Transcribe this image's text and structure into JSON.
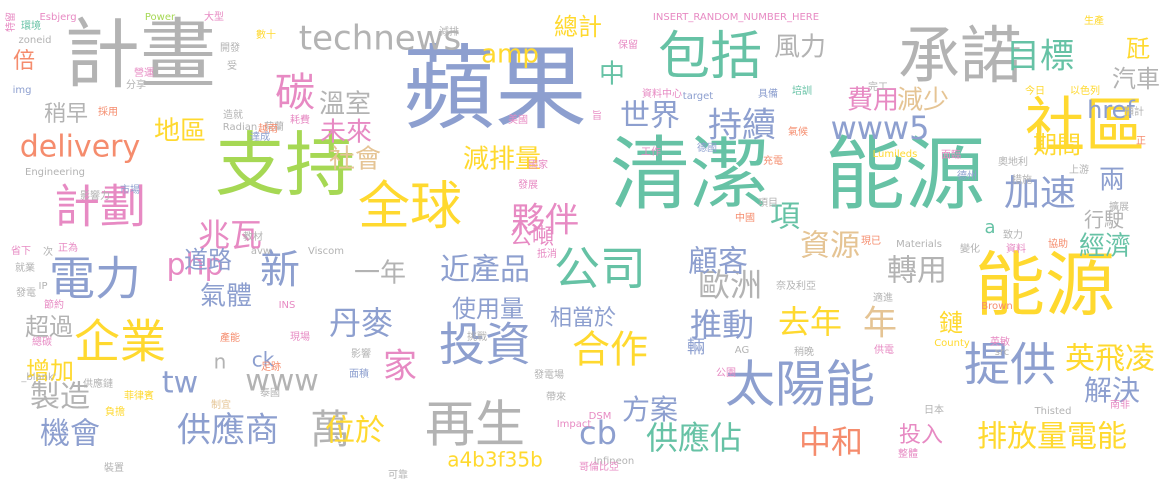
{
  "palette": {
    "blue": "#8d9fcf",
    "green": "#66c2a5",
    "orange": "#f58c6d",
    "pink": "#e78ac3",
    "lime": "#a6d854",
    "yellow": "#ffd92f",
    "tan": "#e5c494",
    "gray": "#b3b3b3"
  },
  "words": [
    {
      "text": "蘋果",
      "color": "blue"
    },
    {
      "text": "清潔",
      "color": "green"
    },
    {
      "text": "能源",
      "color": "green"
    },
    {
      "text": "計畫",
      "color": "gray"
    },
    {
      "text": "支持",
      "color": "lime"
    },
    {
      "text": "能源",
      "color": "yellow"
    },
    {
      "text": "承諾",
      "color": "gray"
    },
    {
      "text": "社區",
      "color": "yellow"
    },
    {
      "text": "包括",
      "color": "green"
    },
    {
      "text": "全球",
      "color": "yellow"
    },
    {
      "text": "再生",
      "color": "gray"
    },
    {
      "text": "太陽能",
      "color": "blue"
    },
    {
      "text": "公司",
      "color": "green"
    },
    {
      "text": "企業",
      "color": "yellow"
    },
    {
      "text": "投資",
      "color": "blue"
    },
    {
      "text": "提供",
      "color": "blue"
    },
    {
      "text": "計劃",
      "color": "pink"
    },
    {
      "text": "電力",
      "color": "blue"
    },
    {
      "text": "碳",
      "color": "pink"
    },
    {
      "text": "technews",
      "color": "gray"
    },
    {
      "text": "目標",
      "color": "green"
    },
    {
      "text": "持續",
      "color": "blue"
    },
    {
      "text": "供應商",
      "color": "blue"
    },
    {
      "text": "萬",
      "color": "gray"
    },
    {
      "text": "合作",
      "color": "yellow"
    },
    {
      "text": "新",
      "color": "blue"
    },
    {
      "text": "夥伴",
      "color": "pink"
    },
    {
      "text": "加速",
      "color": "blue"
    },
    {
      "text": "年",
      "color": "tan"
    },
    {
      "text": "家",
      "color": "pink"
    },
    {
      "text": "機會",
      "color": "blue"
    },
    {
      "text": "cb",
      "color": "blue"
    },
    {
      "text": "供應佔",
      "color": "green"
    },
    {
      "text": "中和",
      "color": "orange"
    },
    {
      "text": "排放量電能",
      "color": "yellow"
    },
    {
      "text": "delivery",
      "color": "orange"
    },
    {
      "text": "兆瓦",
      "color": "pink"
    },
    {
      "text": "位於",
      "color": "yellow"
    },
    {
      "text": "www5",
      "color": "blue"
    },
    {
      "text": "丹麥",
      "color": "blue"
    },
    {
      "text": "推動",
      "color": "blue"
    },
    {
      "text": "去年",
      "color": "yellow"
    },
    {
      "text": "歐洲",
      "color": "gray"
    },
    {
      "text": "www",
      "color": "gray"
    },
    {
      "text": "tw",
      "color": "blue"
    },
    {
      "text": "製造",
      "color": "gray"
    },
    {
      "text": "英飛凌",
      "color": "yellow"
    },
    {
      "text": "解決",
      "color": "blue"
    },
    {
      "text": "方案",
      "color": "blue"
    },
    {
      "text": "資源",
      "color": "tan"
    },
    {
      "text": "轉用",
      "color": "gray"
    },
    {
      "text": "近產品",
      "color": "blue"
    },
    {
      "text": "顧客",
      "color": "blue"
    },
    {
      "text": "項",
      "color": "green"
    },
    {
      "text": "一年",
      "color": "gray"
    },
    {
      "text": "php",
      "color": "pink"
    },
    {
      "text": "amp",
      "color": "yellow"
    },
    {
      "text": "中",
      "color": "green"
    },
    {
      "text": "風力",
      "color": "gray"
    },
    {
      "text": "世界",
      "color": "blue"
    },
    {
      "text": "地區",
      "color": "yellow"
    },
    {
      "text": "社會",
      "color": "tan"
    },
    {
      "text": "減排量",
      "color": "yellow"
    },
    {
      "text": "未來",
      "color": "pink"
    },
    {
      "text": "溫室",
      "color": "gray"
    },
    {
      "text": "費用",
      "color": "pink"
    },
    {
      "text": "減少",
      "color": "tan"
    },
    {
      "text": "期間",
      "color": "yellow"
    },
    {
      "text": "經濟",
      "color": "green"
    },
    {
      "text": "兩",
      "color": "blue"
    },
    {
      "text": "汽車",
      "color": "gray"
    },
    {
      "text": "瓩",
      "color": "yellow"
    },
    {
      "text": "href",
      "color": "blue"
    },
    {
      "text": "總計",
      "color": "yellow"
    },
    {
      "text": "道路",
      "color": "blue"
    },
    {
      "text": "公噸",
      "color": "pink"
    },
    {
      "text": "氣體",
      "color": "blue"
    },
    {
      "text": "超過",
      "color": "gray"
    },
    {
      "text": "使用量",
      "color": "blue"
    },
    {
      "text": "相當於",
      "color": "blue"
    },
    {
      "text": "鏈",
      "color": "yellow"
    },
    {
      "text": "增加",
      "color": "yellow"
    },
    {
      "text": "投入",
      "color": "pink"
    },
    {
      "text": "a4b3f35b",
      "color": "yellow"
    },
    {
      "text": "倍",
      "color": "orange"
    },
    {
      "text": "稍早",
      "color": "gray"
    },
    {
      "text": "ck",
      "color": "blue"
    },
    {
      "text": "n",
      "color": "gray"
    },
    {
      "text": "輛",
      "color": "blue"
    },
    {
      "text": "行駛",
      "color": "gray"
    },
    {
      "text": "a",
      "color": "green"
    },
    {
      "text": "Esbjerg",
      "color": "pink"
    },
    {
      "text": "Power",
      "color": "lime"
    },
    {
      "text": "INSERT_RANDOM_NUMBER_HERE",
      "color": "pink"
    },
    {
      "text": "特留",
      "color": "pink"
    },
    {
      "text": "環境",
      "color": "green"
    },
    {
      "text": "大型",
      "color": "pink"
    },
    {
      "text": "zoneid",
      "color": "gray"
    },
    {
      "text": "開發",
      "color": "gray"
    },
    {
      "text": "數十",
      "color": "yellow"
    },
    {
      "text": "減排",
      "color": "gray"
    },
    {
      "text": "保留",
      "color": "pink"
    },
    {
      "text": "生產",
      "color": "yellow"
    },
    {
      "text": "營運",
      "color": "pink"
    },
    {
      "text": "受",
      "color": "gray"
    },
    {
      "text": "分享",
      "color": "gray"
    },
    {
      "text": "img",
      "color": "blue"
    },
    {
      "text": "資料中心",
      "color": "pink"
    },
    {
      "text": "target",
      "color": "blue"
    },
    {
      "text": "具備",
      "color": "blue"
    },
    {
      "text": "培訓",
      "color": "green"
    },
    {
      "text": "完工",
      "color": "gray"
    },
    {
      "text": "今日",
      "color": "yellow"
    },
    {
      "text": "以色列",
      "color": "yellow"
    },
    {
      "text": "採用",
      "color": "orange"
    },
    {
      "text": "造就",
      "color": "gray"
    },
    {
      "text": "荷蘭",
      "color": "gray"
    },
    {
      "text": "耗費",
      "color": "pink"
    },
    {
      "text": "美國",
      "color": "pink"
    },
    {
      "text": "旨",
      "color": "pink"
    },
    {
      "text": "氣候",
      "color": "orange"
    },
    {
      "text": "預計",
      "color": "gray"
    },
    {
      "text": "Radian",
      "color": "gray"
    },
    {
      "text": "越南",
      "color": "orange"
    },
    {
      "text": "達成",
      "color": "blue"
    },
    {
      "text": "Lumileds",
      "color": "yellow"
    },
    {
      "text": "面臨",
      "color": "pink"
    },
    {
      "text": "正",
      "color": "orange"
    },
    {
      "text": "Engineering",
      "color": "gray"
    },
    {
      "text": "影響力",
      "color": "gray"
    },
    {
      "text": "國家",
      "color": "pink"
    },
    {
      "text": "工作",
      "color": "pink"
    },
    {
      "text": "德國",
      "color": "blue"
    },
    {
      "text": "充電",
      "color": "orange"
    },
    {
      "text": "奧地利",
      "color": "gray"
    },
    {
      "text": "上游",
      "color": "gray"
    },
    {
      "text": "德州",
      "color": "blue"
    },
    {
      "text": "措施",
      "color": "gray"
    },
    {
      "text": "市場",
      "color": "blue"
    },
    {
      "text": "發展",
      "color": "pink"
    },
    {
      "text": "項目",
      "color": "gray"
    },
    {
      "text": "擴展",
      "color": "gray"
    },
    {
      "text": "省下",
      "color": "pink"
    },
    {
      "text": "次",
      "color": "gray"
    },
    {
      "text": "教材",
      "color": "gray"
    },
    {
      "text": "avw",
      "color": "gray"
    },
    {
      "text": "中國",
      "color": "orange"
    },
    {
      "text": "致力",
      "color": "gray"
    },
    {
      "text": "正為",
      "color": "pink"
    },
    {
      "text": "Viscom",
      "color": "gray"
    },
    {
      "text": "現已",
      "color": "orange"
    },
    {
      "text": "Materials",
      "color": "gray"
    },
    {
      "text": "變化",
      "color": "gray"
    },
    {
      "text": "資料",
      "color": "pink"
    },
    {
      "text": "協助",
      "color": "orange"
    },
    {
      "text": "就業",
      "color": "gray"
    },
    {
      "text": "抵消",
      "color": "pink"
    },
    {
      "text": "發電",
      "color": "gray"
    },
    {
      "text": "節約",
      "color": "pink"
    },
    {
      "text": "IP",
      "color": "gray"
    },
    {
      "text": "奈及利亞",
      "color": "gray"
    },
    {
      "text": "Brown",
      "color": "orange"
    },
    {
      "text": "INS",
      "color": "pink"
    },
    {
      "text": "現場",
      "color": "pink"
    },
    {
      "text": "挑戰",
      "color": "gray"
    },
    {
      "text": "適進",
      "color": "gray"
    },
    {
      "text": "總碳",
      "color": "pink"
    },
    {
      "text": "英敏",
      "color": "pink"
    },
    {
      "text": "County",
      "color": "yellow"
    },
    {
      "text": "產能",
      "color": "orange"
    },
    {
      "text": "足跡",
      "color": "orange"
    },
    {
      "text": "影響",
      "color": "gray"
    },
    {
      "text": "AG",
      "color": "gray"
    },
    {
      "text": "稍晚",
      "color": "gray"
    },
    {
      "text": "供電",
      "color": "pink"
    },
    {
      "text": "src",
      "color": "gray"
    },
    {
      "text": "_blank'",
      "color": "gray"
    },
    {
      "text": "供應鏈",
      "color": "gray"
    },
    {
      "text": "面積",
      "color": "blue"
    },
    {
      "text": "發電場",
      "color": "gray"
    },
    {
      "text": "帶來",
      "color": "gray"
    },
    {
      "text": "公園",
      "color": "pink"
    },
    {
      "text": "泰國",
      "color": "gray"
    },
    {
      "text": "菲律賓",
      "color": "yellow"
    },
    {
      "text": "負擔",
      "color": "yellow"
    },
    {
      "text": "制宜",
      "color": "tan"
    },
    {
      "text": "DSM",
      "color": "pink"
    },
    {
      "text": "Impact",
      "color": "pink"
    },
    {
      "text": "日本",
      "color": "gray"
    },
    {
      "text": "Thisted",
      "color": "gray"
    },
    {
      "text": "南非",
      "color": "pink"
    },
    {
      "text": "整體",
      "color": "pink"
    },
    {
      "text": "Infineon",
      "color": "gray"
    },
    {
      "text": "哥倫比亞",
      "color": "pink"
    },
    {
      "text": "可靠",
      "color": "gray"
    },
    {
      "text": "裝置",
      "color": "gray"
    },
    {
      "text": "Solar",
      "color": "gray"
    }
  ]
}
